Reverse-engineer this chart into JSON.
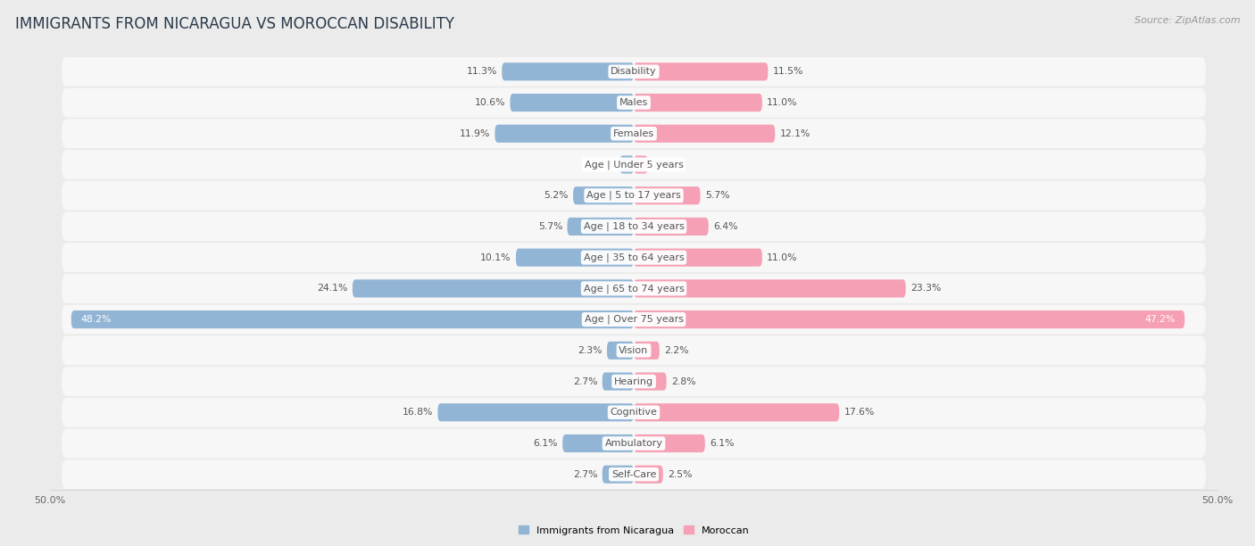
{
  "title": "IMMIGRANTS FROM NICARAGUA VS MOROCCAN DISABILITY",
  "source": "Source: ZipAtlas.com",
  "categories": [
    "Disability",
    "Males",
    "Females",
    "Age | Under 5 years",
    "Age | 5 to 17 years",
    "Age | 18 to 34 years",
    "Age | 35 to 64 years",
    "Age | 65 to 74 years",
    "Age | Over 75 years",
    "Vision",
    "Hearing",
    "Cognitive",
    "Ambulatory",
    "Self-Care"
  ],
  "nicaragua_values": [
    11.3,
    10.6,
    11.9,
    1.2,
    5.2,
    5.7,
    10.1,
    24.1,
    48.2,
    2.3,
    2.7,
    16.8,
    6.1,
    2.7
  ],
  "moroccan_values": [
    11.5,
    11.0,
    12.1,
    1.2,
    5.7,
    6.4,
    11.0,
    23.3,
    47.2,
    2.2,
    2.8,
    17.6,
    6.1,
    2.5
  ],
  "nicaragua_color": "#93b5d5",
  "moroccan_color": "#f5a0b4",
  "nicaragua_label": "Immigrants from Nicaragua",
  "moroccan_label": "Moroccan",
  "background_color": "#ebebeb",
  "bar_background": "#f7f7f7",
  "axis_limit": 50.0,
  "title_fontsize": 12,
  "label_fontsize": 8.0,
  "value_fontsize": 7.8,
  "source_fontsize": 8.0
}
